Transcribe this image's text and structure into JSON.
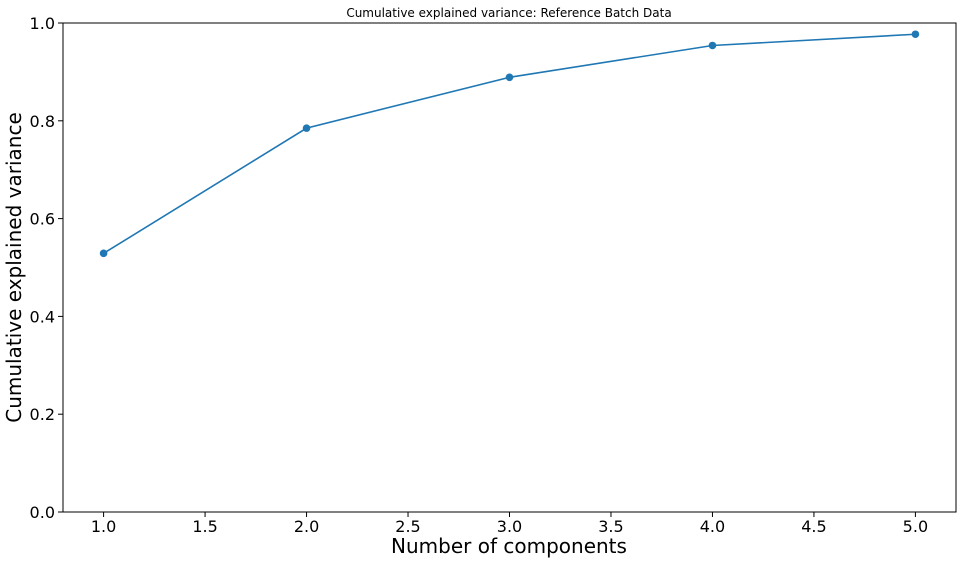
{
  "chart_data": {
    "type": "line",
    "title": "Cumulative explained variance: Reference Batch Data",
    "xlabel": "Number of components",
    "ylabel": "Cumulative explained variance",
    "xlim": [
      0.8,
      5.2
    ],
    "ylim": [
      0.0,
      1.0
    ],
    "grid": false,
    "x_ticks": [
      "1.0",
      "1.5",
      "2.0",
      "2.5",
      "3.0",
      "3.5",
      "4.0",
      "4.5",
      "5.0"
    ],
    "y_ticks": [
      "0.0",
      "0.2",
      "0.4",
      "0.6",
      "0.8",
      "1.0"
    ],
    "series": [
      {
        "color": "#1f77b4",
        "marker": "circle",
        "x": [
          1,
          2,
          3,
          4,
          5
        ],
        "y": [
          0.529,
          0.785,
          0.889,
          0.954,
          0.977
        ]
      }
    ]
  }
}
